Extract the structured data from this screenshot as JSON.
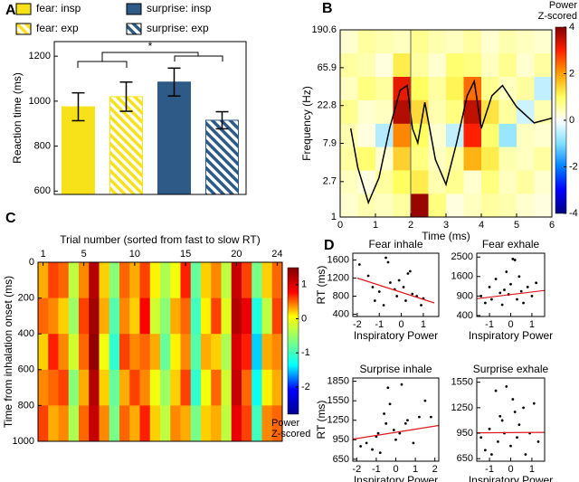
{
  "panel_labels": [
    "A",
    "B",
    "C",
    "D"
  ],
  "chart_data": [
    {
      "type": "bar",
      "categories": [
        "fear: insp",
        "fear: exp",
        "surprise: insp",
        "surprise: exp"
      ],
      "values": [
        975,
        1020,
        1085,
        915
      ],
      "errors": [
        62,
        65,
        62,
        38
      ],
      "colors": [
        "#f7e21a",
        "#f7e21a",
        "#2d5a87",
        "#2d5a87"
      ],
      "patterns": [
        "solid",
        "hatched",
        "solid",
        "hatched"
      ],
      "ylabel": "Reaction time (ms)",
      "ylim": [
        585,
        1265
      ],
      "yticks": [
        600,
        800,
        1000,
        1200
      ],
      "annotations": [
        "*"
      ],
      "legend": "top"
    },
    {
      "type": "heatmap",
      "xlabel": "Time (ms)",
      "ylabel": "Frequency (Hz)",
      "xlim": [
        0,
        6
      ],
      "xticks": [
        0,
        1,
        2,
        3,
        4,
        5,
        6
      ],
      "ylim": [
        1,
        190.6
      ],
      "yticks": [
        1,
        2.7,
        7.9,
        22.8,
        65.9,
        190.6
      ],
      "yscale": "log",
      "xbins": [
        0,
        0.5,
        1,
        1.5,
        2,
        2.5,
        3,
        3.5,
        4,
        4.5,
        5,
        5.5,
        6
      ],
      "ybins": [
        1,
        1.93,
        3.72,
        7.17,
        13.8,
        26.7,
        51.4,
        99.1,
        190.6
      ],
      "z": [
        [
          0.3,
          0.5,
          0.4,
          0.6,
          3.8,
          0.8,
          0.2,
          0.4,
          0.6,
          0.5,
          0.3,
          0.2
        ],
        [
          0.4,
          0.2,
          0.6,
          1.0,
          1.2,
          0.5,
          0.7,
          0.3,
          0.8,
          0.4,
          0.6,
          0.3
        ],
        [
          0.6,
          0.9,
          0.3,
          1.5,
          0.8,
          0.4,
          0.6,
          1.8,
          1.2,
          0.5,
          0.4,
          0.6
        ],
        [
          0.5,
          0.2,
          -0.6,
          2.2,
          1.0,
          0.3,
          -0.5,
          3.0,
          0.9,
          -0.8,
          0.4,
          0.3
        ],
        [
          0.7,
          0.3,
          0.4,
          3.6,
          1.4,
          0.5,
          0.8,
          3.5,
          1.3,
          0.6,
          -0.4,
          0.5
        ],
        [
          0.4,
          0.8,
          0.6,
          3.2,
          1.0,
          0.6,
          1.1,
          2.4,
          0.7,
          0.4,
          0.6,
          -0.5
        ],
        [
          0.6,
          0.5,
          0.2,
          1.2,
          0.6,
          0.3,
          0.9,
          0.8,
          0.4,
          0.7,
          0.3,
          0.6
        ],
        [
          0.3,
          0.6,
          0.5,
          0.4,
          0.7,
          0.5,
          0.4,
          0.6,
          0.3,
          0.5,
          0.4,
          0.3
        ]
      ],
      "clim": [
        -4,
        4
      ],
      "colorbar_ticks": [
        -4,
        -2,
        0,
        2,
        4
      ],
      "colorbar_label": [
        "Power",
        "Z-scored"
      ],
      "colormap": [
        "#00007f",
        "#0000ff",
        "#0080ff",
        "#80e0ff",
        "#ffffff",
        "#ffff60",
        "#ffa000",
        "#ff2000",
        "#800000"
      ],
      "lines": [
        {
          "color": "#000000",
          "x": [
            0.3,
            0.5,
            0.8,
            1.1,
            1.4,
            1.7,
            1.9,
            2.05,
            2.2,
            2.4,
            2.7,
            3.0,
            3.3,
            3.6,
            3.8,
            4.0,
            4.3,
            4.6,
            5.0,
            5.5,
            6.0
          ],
          "y": [
            12,
            4,
            1.5,
            3,
            12,
            35,
            40,
            12,
            8,
            25,
            5,
            2.5,
            8,
            30,
            45,
            12,
            30,
            40,
            22,
            14,
            16
          ]
        }
      ],
      "vline": 2
    },
    {
      "type": "heatmap",
      "title": "Trial number (sorted from fast to slow RT)",
      "ylabel": "Time from inhalation onset (ms)",
      "x": [
        1,
        2,
        3,
        4,
        5,
        6,
        7,
        8,
        9,
        10,
        11,
        12,
        13,
        14,
        15,
        16,
        17,
        18,
        19,
        20,
        21,
        22,
        23,
        24
      ],
      "xlim": [
        0.5,
        24.5
      ],
      "xticks": [
        1,
        5,
        10,
        15,
        20,
        24
      ],
      "ylim": [
        0,
        1000
      ],
      "yticks": [
        0,
        200,
        400,
        600,
        800,
        1000
      ],
      "ybins": [
        0,
        200,
        400,
        600,
        800,
        1000
      ],
      "z": [
        [
          0.3,
          0.6,
          0.5,
          -0.3,
          0.4,
          1.2,
          0.2,
          -0.6,
          0.5,
          0.3,
          0.6,
          0.1,
          -0.4,
          0.0,
          0.7,
          -0.8,
          0.2,
          0.4,
          -0.3,
          1.1,
          0.6,
          -0.7,
          0.2,
          0.5
        ],
        [
          0.5,
          0.4,
          0.2,
          -0.5,
          0.6,
          1.3,
          0.3,
          -0.9,
          0.4,
          0.2,
          0.8,
          -0.2,
          -0.6,
          0.3,
          0.5,
          -1.0,
          0.1,
          0.6,
          -0.1,
          1.2,
          0.9,
          -1.2,
          -0.3,
          0.6
        ],
        [
          0.2,
          0.7,
          0.4,
          -0.2,
          0.5,
          1.4,
          0.0,
          -1.1,
          0.6,
          0.4,
          0.5,
          0.3,
          -0.8,
          0.1,
          0.4,
          -0.9,
          0.3,
          0.2,
          -0.4,
          1.0,
          0.7,
          -1.5,
          0.3,
          0.4
        ],
        [
          0.4,
          0.5,
          0.6,
          -0.6,
          0.3,
          1.2,
          0.2,
          -0.8,
          0.3,
          0.6,
          0.4,
          0.0,
          -0.5,
          0.2,
          0.6,
          -1.1,
          0.0,
          0.5,
          -0.2,
          1.1,
          0.5,
          -1.3,
          0.1,
          0.3
        ],
        [
          0.6,
          0.3,
          0.4,
          -0.4,
          0.5,
          1.1,
          0.4,
          -0.7,
          0.5,
          0.3,
          0.7,
          0.2,
          -0.3,
          0.4,
          0.3,
          -0.7,
          0.2,
          0.3,
          -0.3,
          0.9,
          0.6,
          -1.0,
          0.4,
          0.5
        ]
      ],
      "clim": [
        -2.8,
        1.5
      ],
      "colorbar_ticks": [
        -2,
        -1,
        0,
        1
      ],
      "colorbar_label": [
        "Power",
        "Z-scored"
      ],
      "colormap": [
        "#00008f",
        "#0000ff",
        "#00ffff",
        "#80ff80",
        "#ffff00",
        "#ff0000",
        "#800000"
      ]
    },
    {
      "type": "scatter",
      "title": "Fear inhale",
      "xlabel": "Inspiratory Power",
      "ylabel": "RT (ms)",
      "xlim": [
        -2.2,
        1.7
      ],
      "xticks": [
        -2,
        -1,
        0,
        1
      ],
      "ylim": [
        350,
        1750
      ],
      "yticks": [
        400,
        800,
        1200,
        1600
      ],
      "x": [
        -1.9,
        -1.5,
        -1.3,
        -1.2,
        -1.0,
        -0.8,
        -0.7,
        -0.6,
        -0.5,
        -0.3,
        -0.2,
        -0.1,
        0.1,
        0.2,
        0.3,
        0.4,
        0.5,
        0.7,
        0.9,
        1.0
      ],
      "y": [
        1500,
        1250,
        1000,
        700,
        900,
        600,
        1650,
        1550,
        1100,
        950,
        800,
        1150,
        1000,
        700,
        1300,
        1350,
        850,
        800,
        600,
        750
      ],
      "fit": {
        "color": "#e0191e",
        "x": [
          -2,
          1.5
        ],
        "y": [
          1200,
          650
        ]
      }
    },
    {
      "type": "scatter",
      "title": "Fear exhale",
      "xlabel": "Inspiratory Power",
      "xlim": [
        -1.6,
        1.6
      ],
      "xticks": [
        -1,
        0,
        1
      ],
      "ylim": [
        380,
        2700
      ],
      "yscale": "sqrt",
      "yticks": [
        400,
        900,
        1600,
        2500
      ],
      "x": [
        -1.4,
        -1.2,
        -1.0,
        -0.9,
        -0.7,
        -0.5,
        -0.4,
        -0.3,
        -0.1,
        0.0,
        0.1,
        0.2,
        0.3,
        0.4,
        0.5,
        0.6,
        0.8,
        1.0,
        1.2,
        -0.2
      ],
      "y": [
        900,
        700,
        1200,
        800,
        1500,
        1000,
        650,
        1100,
        950,
        1300,
        2400,
        2350,
        800,
        1600,
        1050,
        700,
        1200,
        900,
        1350,
        1800
      ],
      "fit": {
        "color": "#e0191e",
        "x": [
          -1.6,
          1.6
        ],
        "y": [
          820,
          1080
        ]
      }
    },
    {
      "type": "scatter",
      "title": "Surprise inhale",
      "xlabel": "Inspiratory Power",
      "ylabel": "RT (ms)",
      "xlim": [
        -2.2,
        2.2
      ],
      "xticks": [
        -2,
        -1,
        0,
        1,
        2
      ],
      "ylim": [
        620,
        1900
      ],
      "yticks": [
        650,
        950,
        1250,
        1550,
        1850
      ],
      "x": [
        -1.8,
        -1.5,
        -1.2,
        -1.0,
        -0.8,
        -0.6,
        -0.5,
        -0.4,
        -0.3,
        -0.1,
        0.0,
        0.2,
        0.3,
        0.5,
        0.6,
        0.9,
        1.2,
        1.5,
        1.8,
        -0.9
      ],
      "y": [
        850,
        900,
        800,
        1000,
        750,
        1350,
        1200,
        1750,
        1500,
        1100,
        950,
        1050,
        1800,
        1200,
        1250,
        900,
        1300,
        1550,
        1300,
        1050
      ],
      "fit": {
        "color": "#e0191e",
        "x": [
          -2.2,
          2.2
        ],
        "y": [
          960,
          1170
        ]
      }
    },
    {
      "type": "scatter",
      "title": "Surprise exhale",
      "xlabel": "Inspiratory Power",
      "xlim": [
        -1.6,
        1.6
      ],
      "xticks": [
        -1,
        0,
        1
      ],
      "ylim": [
        620,
        1600
      ],
      "yticks": [
        650,
        950,
        1250,
        1550
      ],
      "x": [
        -1.4,
        -1.2,
        -1.0,
        -0.9,
        -0.7,
        -0.6,
        -0.4,
        -0.3,
        -0.2,
        0.0,
        0.1,
        0.2,
        0.3,
        0.4,
        0.6,
        0.7,
        0.9,
        1.1,
        1.3,
        -0.5
      ],
      "y": [
        900,
        750,
        1000,
        700,
        1450,
        850,
        1100,
        950,
        1500,
        800,
        1350,
        1200,
        900,
        1050,
        1250,
        700,
        950,
        1300,
        850,
        1150
      ],
      "fit": {
        "color": "#e0191e",
        "x": [
          -1.6,
          1.6
        ],
        "y": [
          955,
          960
        ]
      }
    }
  ]
}
